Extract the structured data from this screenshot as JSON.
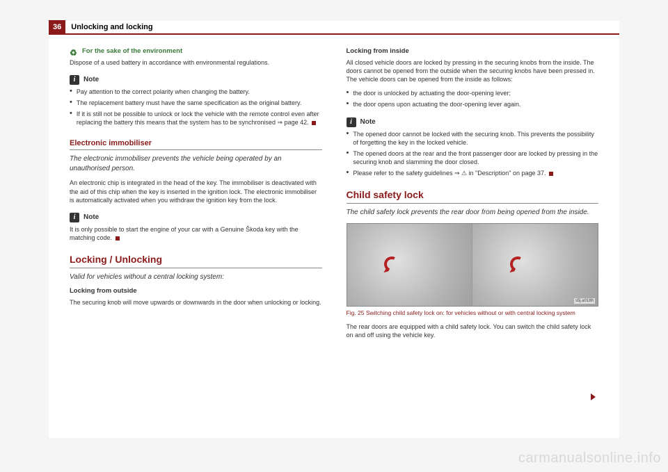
{
  "page": {
    "number": "36",
    "chapter": "Unlocking and locking"
  },
  "left": {
    "env_heading": "For the sake of the environment",
    "env_text": "Dispose of a used battery in accordance with environmental regulations.",
    "note_label": "Note",
    "note_items": [
      "Pay attention to the correct polarity when changing the battery.",
      "The replacement battery must have the same specification as the original battery.",
      "If it is still not be possible to unlock or lock the vehicle with the remote control even after replacing the battery this means that the system has to be synchronised ⇒ page 42."
    ],
    "immobiliser_heading": "Electronic immobiliser",
    "immobiliser_intro": "The electronic immobiliser prevents the vehicle being operated by an unauthorised person.",
    "immobiliser_body": "An electronic chip is integrated in the head of the key. The immobiliser is deactivated with the aid of this chip when the key is inserted in the ignition lock. The electronic immobiliser is automatically activated when you withdraw the ignition key from the lock.",
    "immobiliser_note": "It is only possible to start the engine of your car with a Genuine Škoda key with the matching code.",
    "locking_heading": "Locking / Unlocking",
    "locking_intro": "Valid for vehicles without a central locking system:",
    "locking_outside_label": "Locking from outside",
    "locking_outside_text": "The securing knob will move upwards or downwards in the door when unlocking or locking."
  },
  "right": {
    "locking_inside_label": "Locking from inside",
    "locking_inside_text": "All closed vehicle doors are locked by pressing in the securing knobs from the inside. The doors cannot be opened from the outside when the securing knobs have been pressed in. The vehicle doors can be opened from the inside as follows:",
    "inside_items": [
      "the door is unlocked by actuating the door-opening lever;",
      "the door opens upon actuating the door-opening lever again."
    ],
    "note_label": "Note",
    "note_items": [
      "The opened door cannot be locked with the securing knob. This prevents the possibility of forgetting the key in the locked vehicle.",
      "The opened doors at the rear and the front passenger door are locked by pressing in the securing knob and slamming the door closed.",
      "Please refer to the safety guidelines ⇒ ⚠ in \"Description\" on page 37."
    ],
    "childlock_heading": "Child safety lock",
    "childlock_intro": "The child safety lock prevents the rear door from being opened from the inside.",
    "fig_label": "s5j.a018h",
    "fig_caption": "Fig. 25   Switching child safety lock on: for vehicles without or with central locking system",
    "childlock_body": "The rear doors are equipped with a child safety lock. You can switch the child safety lock on and off using the vehicle key."
  },
  "watermark": "carmanualsonline.info",
  "colors": {
    "brand": "#8b1a1a",
    "eco": "#3a7a3a",
    "page_bg": "#ffffff",
    "body_bg": "#f5f5f5"
  }
}
